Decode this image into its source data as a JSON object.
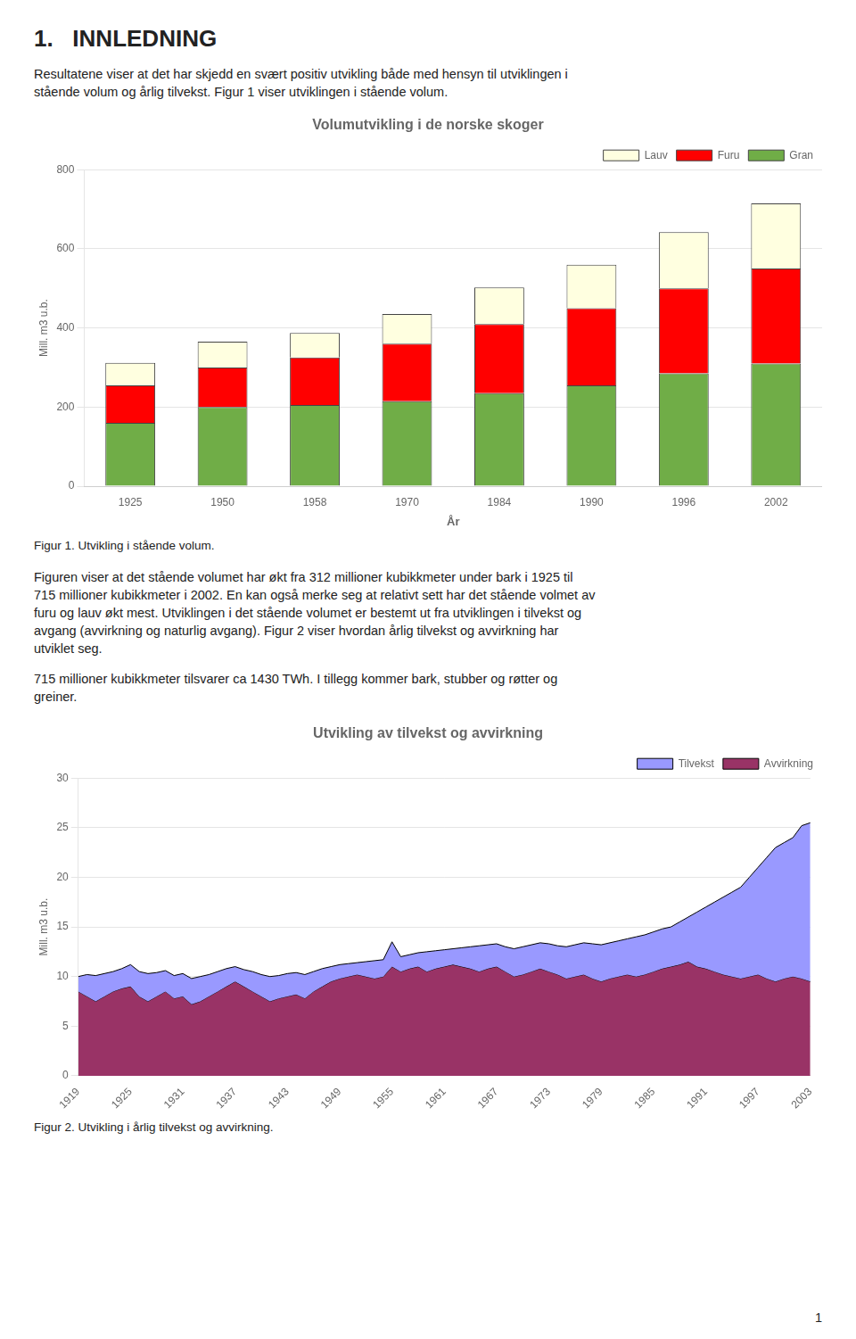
{
  "page_title": "1.   INNLEDNING",
  "intro_text": [
    "Resultatene viser at det har skjedd en svært positiv utvikling både med hensyn til utviklingen i",
    "stående volum og årlig tilvekst. Figur 1 viser utviklingen i stående volum."
  ],
  "body_text1": [
    "Figuren viser at det stående volumet har økt fra 312 millioner kubikkmeter under bark i 1925 til",
    "715 millioner kubikkmeter i 2002. En kan også merke seg at relativt sett har det stående volmet av",
    "furu og lauv økt mest. Utviklingen i det stående volumet er bestemt ut fra utviklingen i tilvekst og",
    "avgang (avvirkning og naturlig avgang). Figur 2 viser hvordan årlig tilvekst og avvirkning har",
    "utviklet seg."
  ],
  "body_text2": [
    "715 millioner kubikkmeter tilsvarer ca 1430 TWh. I tillegg kommer bark, stubber og røtter og",
    "greiner."
  ],
  "page_number": "1",
  "chart_data": [
    {
      "type": "bar",
      "stacked": true,
      "title": "Volumutvikling i de norske skoger",
      "xlabel": "År",
      "ylabel": "Mill. m3 u.b.",
      "categories": [
        "1925",
        "1950",
        "1958",
        "1970",
        "1984",
        "1990",
        "1996",
        "2002"
      ],
      "series": [
        {
          "name": "Gran",
          "color": "#70AD47",
          "values": [
            160,
            200,
            205,
            215,
            235,
            255,
            285,
            310
          ]
        },
        {
          "name": "Furu",
          "color": "#FF0000",
          "values": [
            95,
            100,
            120,
            145,
            175,
            195,
            215,
            240
          ]
        },
        {
          "name": "Lauv",
          "color": "#FFFFE0",
          "values": [
            57,
            65,
            62,
            75,
            92,
            110,
            142,
            165
          ]
        }
      ],
      "ylim": [
        0,
        800
      ],
      "yticks": [
        0,
        200,
        400,
        600,
        800
      ],
      "grid": "y",
      "legend": "upper right",
      "caption": "Figur 1.  Utvikling i stående volum."
    },
    {
      "type": "area",
      "title": "Utvikling av tilvekst og avvirkning",
      "ylabel": "Mill. m3 u.b.",
      "x": [
        1919,
        1920,
        1921,
        1922,
        1923,
        1924,
        1925,
        1926,
        1927,
        1928,
        1929,
        1930,
        1931,
        1932,
        1933,
        1934,
        1935,
        1936,
        1937,
        1938,
        1939,
        1940,
        1941,
        1942,
        1943,
        1944,
        1945,
        1946,
        1947,
        1948,
        1949,
        1950,
        1951,
        1952,
        1953,
        1954,
        1955,
        1956,
        1957,
        1958,
        1959,
        1960,
        1961,
        1962,
        1963,
        1964,
        1965,
        1966,
        1967,
        1968,
        1969,
        1970,
        1971,
        1972,
        1973,
        1974,
        1975,
        1976,
        1977,
        1978,
        1979,
        1980,
        1981,
        1982,
        1983,
        1984,
        1985,
        1986,
        1987,
        1988,
        1989,
        1990,
        1991,
        1992,
        1993,
        1994,
        1995,
        1996,
        1997,
        1998,
        1999,
        2000,
        2001,
        2002,
        2003
      ],
      "series": [
        {
          "name": "Tilvekst",
          "color": "#9999FF",
          "values": [
            10,
            10.2,
            10.1,
            10.3,
            10.5,
            10.8,
            11.2,
            10.5,
            10.3,
            10.4,
            10.6,
            10.1,
            10.3,
            9.8,
            10.0,
            10.2,
            10.5,
            10.8,
            11.0,
            10.7,
            10.5,
            10.2,
            10.0,
            10.1,
            10.3,
            10.4,
            10.2,
            10.5,
            10.8,
            11.0,
            11.2,
            11.3,
            11.4,
            11.5,
            11.6,
            11.7,
            13.5,
            12.0,
            12.2,
            12.4,
            12.5,
            12.6,
            12.7,
            12.8,
            12.9,
            13.0,
            13.1,
            13.2,
            13.3,
            13.0,
            12.8,
            13.0,
            13.2,
            13.4,
            13.3,
            13.1,
            13.0,
            13.2,
            13.4,
            13.3,
            13.2,
            13.4,
            13.6,
            13.8,
            14.0,
            14.2,
            14.5,
            14.8,
            15.0,
            15.5,
            16.0,
            16.5,
            17.0,
            17.5,
            18.0,
            18.5,
            19.0,
            20.0,
            21.0,
            22.0,
            23.0,
            23.5,
            24.0,
            25.2,
            25.5
          ]
        },
        {
          "name": "Avvirkning",
          "color": "#993366",
          "values": [
            8.5,
            8.0,
            7.5,
            8.0,
            8.5,
            8.8,
            9.0,
            8.0,
            7.5,
            8.0,
            8.5,
            7.8,
            8.0,
            7.2,
            7.5,
            8.0,
            8.5,
            9.0,
            9.5,
            9.0,
            8.5,
            8.0,
            7.5,
            7.8,
            8.0,
            8.2,
            7.8,
            8.5,
            9.0,
            9.5,
            9.8,
            10.0,
            10.2,
            10.0,
            9.8,
            10.0,
            11.0,
            10.5,
            10.8,
            11.0,
            10.5,
            10.8,
            11.0,
            11.2,
            11.0,
            10.8,
            10.5,
            10.8,
            11.0,
            10.5,
            10.0,
            10.2,
            10.5,
            10.8,
            10.5,
            10.2,
            9.8,
            10.0,
            10.2,
            9.8,
            9.5,
            9.8,
            10.0,
            10.2,
            10.0,
            10.2,
            10.5,
            10.8,
            11.0,
            11.2,
            11.5,
            11.0,
            10.8,
            10.5,
            10.2,
            10.0,
            9.8,
            10.0,
            10.2,
            9.8,
            9.5,
            9.8,
            10.0,
            9.8,
            9.5
          ]
        }
      ],
      "xlim": [
        1919,
        2003
      ],
      "xticks": [
        1919,
        1925,
        1931,
        1937,
        1943,
        1949,
        1955,
        1961,
        1967,
        1973,
        1979,
        1985,
        1991,
        1997,
        2003
      ],
      "ylim": [
        0,
        30
      ],
      "yticks": [
        0,
        5,
        10,
        15,
        20,
        25,
        30
      ],
      "grid": "y",
      "legend": "upper right",
      "caption": "Figur 2.  Utvikling i årlig tilvekst og avvirkning."
    }
  ]
}
